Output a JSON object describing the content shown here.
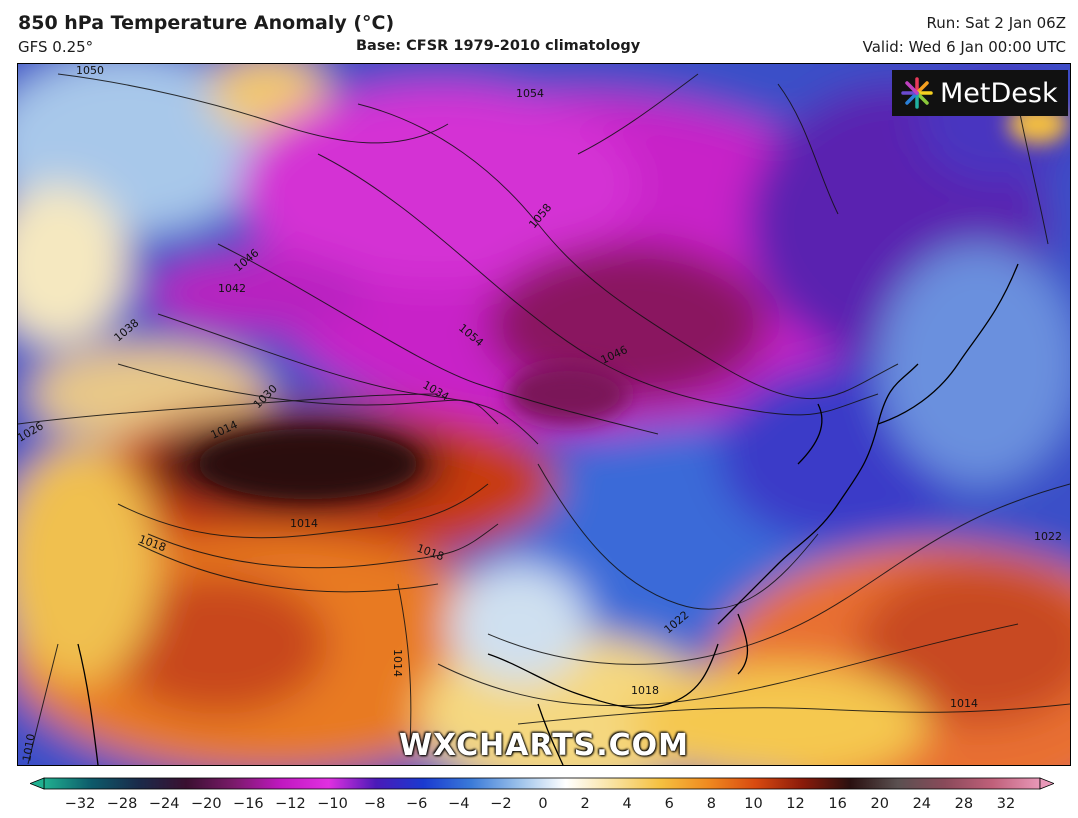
{
  "header": {
    "title": "850 hPa Temperature Anomaly (°C)",
    "model": "GFS 0.25°",
    "base": "Base: CFSR 1979-2010 climatology",
    "run": "Run: Sat 2 Jan 06Z",
    "valid": "Valid: Wed 6 Jan 00:00 UTC"
  },
  "logo": {
    "text": "MetDesk"
  },
  "watermark": "WXCHARTS.COM",
  "isobars": [
    {
      "label": "1050"
    },
    {
      "label": "1054"
    },
    {
      "label": "1058"
    },
    {
      "label": "1054"
    },
    {
      "label": "1046"
    },
    {
      "label": "1046"
    },
    {
      "label": "1042"
    },
    {
      "label": "1038"
    },
    {
      "label": "1034"
    },
    {
      "label": "1030"
    },
    {
      "label": "1026"
    },
    {
      "label": "1022"
    },
    {
      "label": "1018"
    },
    {
      "label": "1018"
    },
    {
      "label": "1018"
    },
    {
      "label": "1014"
    },
    {
      "label": "1014"
    },
    {
      "label": "1014"
    },
    {
      "label": "1014"
    },
    {
      "label": "1010"
    },
    {
      "label": "1022"
    }
  ],
  "colorbar": {
    "ticks": [
      "−32",
      "−28",
      "−24",
      "−20",
      "−16",
      "−12",
      "−10",
      "−8",
      "−6",
      "−4",
      "−2",
      "0",
      "2",
      "4",
      "6",
      "8",
      "10",
      "12",
      "16",
      "20",
      "24",
      "28",
      "32"
    ],
    "colors": [
      "#20b090",
      "#0d5a6a",
      "#1a2a4a",
      "#3a1030",
      "#7a1a6a",
      "#c018c0",
      "#e030e0",
      "#4a1ab8",
      "#1a3ad0",
      "#3a7ad8",
      "#9ac0ea",
      "#ffffff",
      "#f8e2a0",
      "#f5c040",
      "#f08a20",
      "#d84a10",
      "#8a1a0a",
      "#2a1010",
      "#5a5050",
      "#8a4a5a",
      "#c0607a",
      "#e898b8"
    ]
  }
}
